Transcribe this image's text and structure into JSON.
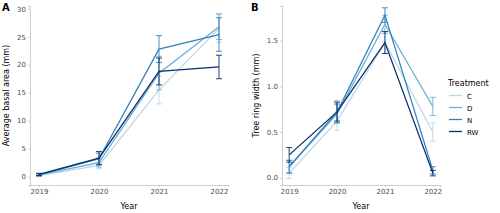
{
  "chart_data": [
    {
      "type": "line",
      "title": "A",
      "x_label": "Year",
      "y_label": "Average basal area (mm)",
      "x": [
        2019,
        2020,
        2021,
        2022
      ],
      "xlim": [
        2018.85,
        2022.15
      ],
      "xticks": [
        2019,
        2020,
        2021,
        2022
      ],
      "ylim": [
        -1.5,
        30.5
      ],
      "yticks": [
        0,
        5,
        10,
        15,
        20,
        25,
        30
      ],
      "grid": false,
      "series": [
        {
          "name": "C",
          "color": "#BDD7E7",
          "values": [
            0.2,
            2.0,
            15.5,
            26.5
          ],
          "errors": [
            0.1,
            0.6,
            2.5,
            2.5
          ]
        },
        {
          "name": "D",
          "color": "#6BAED6",
          "values": [
            0.3,
            2.5,
            18.5,
            26.8
          ],
          "errors": [
            0.2,
            0.8,
            3.0,
            2.3
          ]
        },
        {
          "name": "N",
          "color": "#3182BD",
          "values": [
            0.3,
            3.2,
            22.8,
            25.4
          ],
          "errors": [
            0.2,
            1.0,
            2.4,
            3.0
          ]
        },
        {
          "name": "RW",
          "color": "#08306B",
          "values": [
            0.4,
            3.3,
            18.8,
            19.6
          ],
          "errors": [
            0.2,
            1.2,
            2.4,
            2.1
          ]
        }
      ]
    },
    {
      "type": "line",
      "title": "B",
      "x_label": "Year",
      "y_label": "Tree ring width (mm)",
      "x": [
        2019,
        2020,
        2021,
        2022
      ],
      "xlim": [
        2018.85,
        2022.15
      ],
      "xticks": [
        2019,
        2020,
        2021,
        2022
      ],
      "ylim": [
        -0.08,
        1.88
      ],
      "yticks": [
        {
          "value": 0,
          "label": "0.0"
        },
        {
          "value": 0.5,
          "label": "0.5"
        },
        {
          "value": 1,
          "label": "1.0"
        },
        {
          "value": 1.5,
          "label": "1.5"
        }
      ],
      "grid": false,
      "legend": "right",
      "legend_title": "Treatment",
      "series": [
        {
          "name": "C",
          "color": "#BDD7E7",
          "values": [
            0.05,
            0.62,
            1.48,
            0.5
          ],
          "errors": [
            0.06,
            0.1,
            0.12,
            0.1
          ]
        },
        {
          "name": "D",
          "color": "#6BAED6",
          "values": [
            0.12,
            0.7,
            1.68,
            0.78
          ],
          "errors": [
            0.07,
            0.1,
            0.1,
            0.1
          ]
        },
        {
          "name": "N",
          "color": "#3182BD",
          "values": [
            0.12,
            0.72,
            1.78,
            0.08
          ],
          "errors": [
            0.07,
            0.12,
            0.08,
            0.04
          ]
        },
        {
          "name": "RW",
          "color": "#08306B",
          "values": [
            0.25,
            0.72,
            1.48,
            0.05
          ],
          "errors": [
            0.08,
            0.1,
            0.12,
            0.03
          ]
        }
      ]
    }
  ]
}
